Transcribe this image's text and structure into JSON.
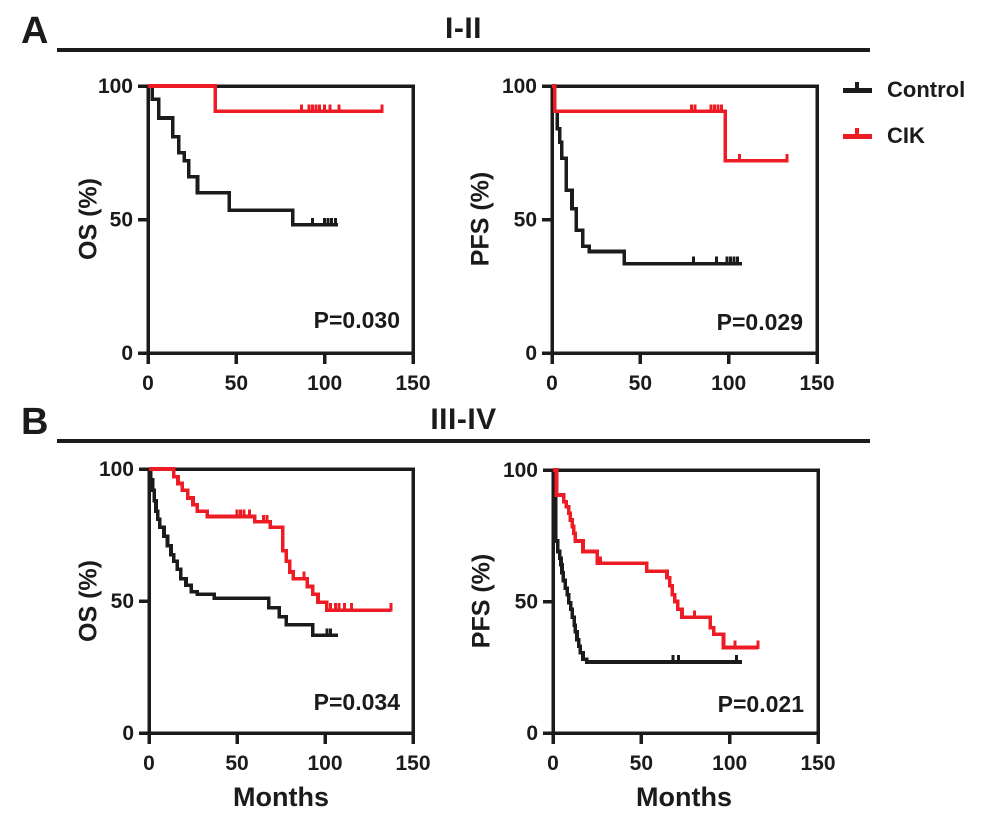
{
  "figure": {
    "panels": [
      {
        "letter": "A",
        "title": "I-II"
      },
      {
        "letter": "B",
        "title": "III-IV"
      }
    ],
    "legend": {
      "entries": [
        {
          "label": "Control",
          "color": "#1b1b1b"
        },
        {
          "label": "CIK",
          "color": "#ed1c24"
        }
      ]
    },
    "colors": {
      "black": "#1b1b1b",
      "red": "#ed1c24",
      "background": "#ffffff"
    }
  },
  "chart_data": [
    {
      "id": "panelA-OS",
      "panel": "A",
      "group": "I-II",
      "type": "line",
      "subtype": "kaplan-meier-step",
      "ylabel": "OS (%)",
      "xlabel": "",
      "p_value": "P=0.030",
      "xlim": [
        0,
        150
      ],
      "ylim": [
        0,
        100
      ],
      "xticks": [
        0,
        50,
        100,
        150
      ],
      "yticks": [
        0,
        50,
        100
      ],
      "series": [
        {
          "name": "Control",
          "color": "#1b1b1b",
          "steps": [
            [
              0,
              100
            ],
            [
              2.5,
              95
            ],
            [
              6,
              88
            ],
            [
              14,
              81
            ],
            [
              17.5,
              75
            ],
            [
              20.5,
              72
            ],
            [
              23,
              66
            ],
            [
              28,
              60
            ],
            [
              46,
              53.5
            ],
            [
              82,
              48
            ]
          ],
          "end": 107.5,
          "censor_months": [
            93,
            100,
            102,
            104,
            106
          ]
        },
        {
          "name": "CIK",
          "color": "#ed1c24",
          "steps": [
            [
              0,
              100
            ],
            [
              38,
              90.5
            ]
          ],
          "end": 132.5,
          "censor_months": [
            87,
            91,
            93,
            95,
            97,
            100,
            103,
            108,
            132.5
          ]
        }
      ]
    },
    {
      "id": "panelA-PFS",
      "panel": "A",
      "group": "I-II",
      "type": "line",
      "subtype": "kaplan-meier-step",
      "ylabel": "PFS (%)",
      "xlabel": "",
      "p_value": "P=0.029",
      "xlim": [
        0,
        150
      ],
      "ylim": [
        0,
        100
      ],
      "xticks": [
        0,
        50,
        100,
        150
      ],
      "yticks": [
        0,
        50,
        100
      ],
      "series": [
        {
          "name": "Control",
          "color": "#1b1b1b",
          "steps": [
            [
              0,
              100
            ],
            [
              1.5,
              90.5
            ],
            [
              3,
              84
            ],
            [
              4.3,
              79
            ],
            [
              5.6,
              73
            ],
            [
              8,
              61
            ],
            [
              11.3,
              54
            ],
            [
              13.7,
              46
            ],
            [
              17.5,
              40
            ],
            [
              21,
              38
            ],
            [
              41,
              33.5
            ]
          ],
          "end": 107.5,
          "censor_months": [
            80,
            93,
            99,
            101,
            103,
            105
          ]
        },
        {
          "name": "CIK",
          "color": "#ed1c24",
          "steps": [
            [
              0,
              100
            ],
            [
              1.5,
              90.5
            ],
            [
              98,
              72
            ]
          ],
          "end": 133,
          "censor_months": [
            79,
            81,
            90,
            92,
            94,
            96,
            106,
            133
          ]
        }
      ]
    },
    {
      "id": "panelB-OS",
      "panel": "B",
      "group": "III-IV",
      "type": "line",
      "subtype": "kaplan-meier-step",
      "ylabel": "OS (%)",
      "xlabel": "Months",
      "p_value": "P=0.034",
      "xlim": [
        0,
        150
      ],
      "ylim": [
        0,
        100
      ],
      "xticks": [
        0,
        50,
        100,
        150
      ],
      "yticks": [
        0,
        50,
        100
      ],
      "series": [
        {
          "name": "Control",
          "color": "#1b1b1b",
          "steps": [
            [
              0,
              100
            ],
            [
              1,
              96
            ],
            [
              2,
              92
            ],
            [
              3,
              88
            ],
            [
              4,
              84
            ],
            [
              5,
              81
            ],
            [
              6,
              78
            ],
            [
              8.5,
              74.5
            ],
            [
              10.5,
              71
            ],
            [
              12.5,
              67.5
            ],
            [
              14,
              65
            ],
            [
              16,
              62
            ],
            [
              18,
              58.5
            ],
            [
              21,
              56
            ],
            [
              24,
              53.5
            ],
            [
              27.5,
              52.5
            ],
            [
              37,
              51
            ],
            [
              68,
              47.5
            ],
            [
              74,
              44
            ],
            [
              78,
              41
            ],
            [
              93,
              37
            ]
          ],
          "end": 107.5,
          "censor_months": [
            101,
            103
          ]
        },
        {
          "name": "CIK",
          "color": "#ed1c24",
          "steps": [
            [
              0,
              100
            ],
            [
              14,
              97
            ],
            [
              16.5,
              94.5
            ],
            [
              19,
              92
            ],
            [
              22,
              89
            ],
            [
              25,
              86.5
            ],
            [
              27.5,
              84
            ],
            [
              33,
              82
            ],
            [
              60,
              80
            ],
            [
              69,
              78
            ],
            [
              76,
              69
            ],
            [
              78,
              65
            ],
            [
              80,
              61
            ],
            [
              82,
              58.5
            ],
            [
              90,
              55.5
            ],
            [
              93,
              52.5
            ],
            [
              96,
              49.5
            ],
            [
              101,
              46.5
            ]
          ],
          "end": 137.5,
          "censor_months": [
            50,
            52,
            54,
            57,
            65,
            67,
            88,
            103,
            106,
            108,
            111,
            115,
            137.5
          ]
        }
      ]
    },
    {
      "id": "panelB-PFS",
      "panel": "B",
      "group": "III-IV",
      "type": "line",
      "subtype": "kaplan-meier-step",
      "ylabel": "PFS (%)",
      "xlabel": "Months",
      "p_value": "P=0.021",
      "xlim": [
        0,
        150
      ],
      "ylim": [
        0,
        100
      ],
      "xticks": [
        0,
        50,
        100,
        150
      ],
      "yticks": [
        0,
        50,
        100
      ],
      "series": [
        {
          "name": "Control",
          "color": "#1b1b1b",
          "steps": [
            [
              0,
              100
            ],
            [
              1.5,
              73
            ],
            [
              2.6,
              69
            ],
            [
              3.8,
              66.5
            ],
            [
              4.5,
              64
            ],
            [
              5.1,
              61
            ],
            [
              5.7,
              58
            ],
            [
              7,
              55
            ],
            [
              8,
              52.5
            ],
            [
              9,
              49.5
            ],
            [
              10,
              47
            ],
            [
              11,
              44
            ],
            [
              12,
              41
            ],
            [
              12.6,
              38.5
            ],
            [
              13.6,
              35.5
            ],
            [
              14.5,
              33
            ],
            [
              15.5,
              30.5
            ],
            [
              17,
              28
            ],
            [
              19,
              27
            ]
          ],
          "end": 107,
          "censor_months": [
            68,
            71,
            104
          ]
        },
        {
          "name": "CIK",
          "color": "#ed1c24",
          "steps": [
            [
              0,
              100
            ],
            [
              2,
              90.5
            ],
            [
              6,
              88
            ],
            [
              7.5,
              86
            ],
            [
              8.9,
              83.5
            ],
            [
              9.8,
              81
            ],
            [
              10.8,
              78.5
            ],
            [
              11.7,
              76
            ],
            [
              12.6,
              73
            ],
            [
              17,
              69
            ],
            [
              25,
              64.5
            ],
            [
              53,
              61.5
            ],
            [
              64.5,
              59
            ],
            [
              66,
              56
            ],
            [
              67.5,
              52.5
            ],
            [
              69,
              50
            ],
            [
              70.5,
              47
            ],
            [
              73,
              44
            ],
            [
              89,
              40
            ],
            [
              91,
              37.5
            ],
            [
              96.5,
              32.5
            ]
          ],
          "end": 116,
          "censor_months": [
            27,
            80,
            103,
            116
          ]
        }
      ]
    }
  ]
}
